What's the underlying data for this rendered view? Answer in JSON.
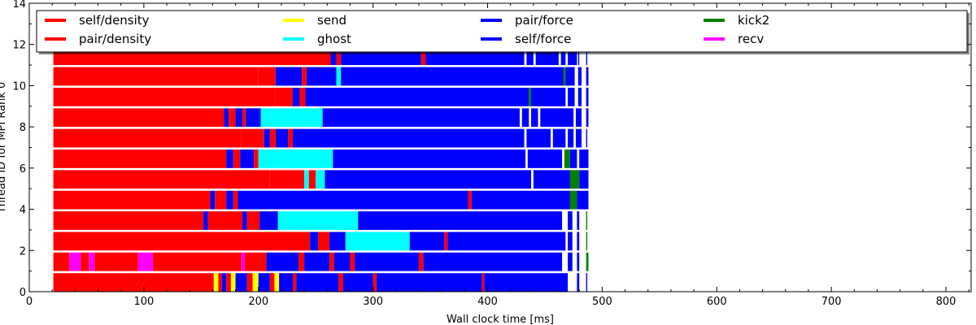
{
  "chart_data": {
    "type": "bar",
    "orientation": "horizontal",
    "xlabel": "Wall clock time [ms]",
    "ylabel": "Thread ID for MPI Rank 0",
    "xlim": [
      0,
      822
    ],
    "ylim": [
      0,
      14
    ],
    "xticks": [
      0,
      100,
      200,
      300,
      400,
      500,
      600,
      700,
      800
    ],
    "yticks": [
      0,
      2,
      4,
      6,
      8,
      10,
      12,
      14
    ],
    "grid": false,
    "legend_position": "top",
    "legend": [
      {
        "name": "self/density",
        "color": "#ff0000"
      },
      {
        "name": "pair/density",
        "color": "#ff0000"
      },
      {
        "name": "send",
        "color": "#ffff00"
      },
      {
        "name": "ghost",
        "color": "#00ffff"
      },
      {
        "name": "pair/force",
        "color": "#0000ff"
      },
      {
        "name": "self/force",
        "color": "#0000ff"
      },
      {
        "name": "kick2",
        "color": "#008000"
      },
      {
        "name": "recv",
        "color": "#ff00ff"
      }
    ],
    "threads": [
      {
        "id": 0,
        "segments": [
          [
            21,
            161,
            "#ff0000"
          ],
          [
            161,
            165,
            "#ffff00"
          ],
          [
            165,
            168,
            "#ff0000"
          ],
          [
            168,
            172,
            "#0000ff"
          ],
          [
            172,
            176,
            "#ff0000"
          ],
          [
            176,
            180,
            "#ffff00"
          ],
          [
            180,
            190,
            "#0000ff"
          ],
          [
            190,
            195,
            "#ff0000"
          ],
          [
            195,
            200,
            "#ffff00"
          ],
          [
            200,
            210,
            "#0000ff"
          ],
          [
            210,
            214,
            "#ff0000"
          ],
          [
            214,
            218,
            "#ffff00"
          ],
          [
            218,
            230,
            "#0000ff"
          ],
          [
            230,
            233,
            "#ff0000"
          ],
          [
            233,
            270,
            "#0000ff"
          ],
          [
            270,
            274,
            "#ff0000"
          ],
          [
            274,
            300,
            "#0000ff"
          ],
          [
            300,
            303,
            "#ff0000"
          ],
          [
            303,
            395,
            "#0000ff"
          ],
          [
            395,
            397,
            "#ff0000"
          ],
          [
            397,
            470,
            "#0000ff"
          ],
          [
            478,
            480,
            "#0000ff"
          ],
          [
            486,
            487,
            "#0000ff"
          ]
        ]
      },
      {
        "id": 1,
        "segments": [
          [
            21,
            35,
            "#ff0000"
          ],
          [
            35,
            45,
            "#ff00ff"
          ],
          [
            45,
            52,
            "#ff0000"
          ],
          [
            52,
            57,
            "#ff00ff"
          ],
          [
            57,
            95,
            "#ff0000"
          ],
          [
            95,
            108,
            "#ff00ff"
          ],
          [
            108,
            185,
            "#ff0000"
          ],
          [
            185,
            188,
            "#ff00ff"
          ],
          [
            188,
            207,
            "#ff0000"
          ],
          [
            207,
            235,
            "#0000ff"
          ],
          [
            235,
            240,
            "#ff0000"
          ],
          [
            240,
            262,
            "#0000ff"
          ],
          [
            262,
            266,
            "#ff0000"
          ],
          [
            266,
            280,
            "#0000ff"
          ],
          [
            280,
            284,
            "#ff0000"
          ],
          [
            284,
            340,
            "#0000ff"
          ],
          [
            340,
            344,
            "#ff0000"
          ],
          [
            344,
            465,
            "#0000ff"
          ],
          [
            470,
            474,
            "#0000ff"
          ],
          [
            478,
            480,
            "#0000ff"
          ],
          [
            486,
            488,
            "#008000"
          ]
        ]
      },
      {
        "id": 2,
        "segments": [
          [
            21,
            245,
            "#ff0000"
          ],
          [
            245,
            252,
            "#0000ff"
          ],
          [
            252,
            262,
            "#ff0000"
          ],
          [
            262,
            276,
            "#0000ff"
          ],
          [
            276,
            332,
            "#00ffff"
          ],
          [
            332,
            362,
            "#0000ff"
          ],
          [
            362,
            365,
            "#ff0000"
          ],
          [
            365,
            468,
            "#0000ff"
          ],
          [
            470,
            474,
            "#0000ff"
          ],
          [
            478,
            480,
            "#0000ff"
          ],
          [
            486,
            487,
            "#008000"
          ]
        ]
      },
      {
        "id": 3,
        "segments": [
          [
            21,
            152,
            "#ff0000"
          ],
          [
            152,
            156,
            "#0000ff"
          ],
          [
            156,
            186,
            "#ff0000"
          ],
          [
            186,
            190,
            "#0000ff"
          ],
          [
            190,
            201,
            "#ff0000"
          ],
          [
            201,
            217,
            "#0000ff"
          ],
          [
            217,
            287,
            "#00ffff"
          ],
          [
            287,
            465,
            "#0000ff"
          ],
          [
            470,
            474,
            "#0000ff"
          ],
          [
            478,
            480,
            "#0000ff"
          ],
          [
            486,
            487,
            "#008000"
          ]
        ]
      },
      {
        "id": 4,
        "segments": [
          [
            21,
            158,
            "#ff0000"
          ],
          [
            158,
            162,
            "#0000ff"
          ],
          [
            162,
            172,
            "#ff0000"
          ],
          [
            172,
            178,
            "#0000ff"
          ],
          [
            178,
            182,
            "#ff0000"
          ],
          [
            182,
            383,
            "#0000ff"
          ],
          [
            383,
            386,
            "#ff0000"
          ],
          [
            386,
            472,
            "#0000ff"
          ],
          [
            472,
            478,
            "#008000"
          ],
          [
            478,
            488,
            "#0000ff"
          ]
        ]
      },
      {
        "id": 5,
        "segments": [
          [
            21,
            210,
            "#ff0000"
          ],
          [
            210,
            240,
            "#ff0000"
          ],
          [
            240,
            244,
            "#00ffff"
          ],
          [
            244,
            250,
            "#ff0000"
          ],
          [
            250,
            258,
            "#00ffff"
          ],
          [
            258,
            438,
            "#0000ff"
          ],
          [
            440,
            472,
            "#0000ff"
          ],
          [
            472,
            480,
            "#008000"
          ],
          [
            480,
            488,
            "#0000ff"
          ]
        ]
      },
      {
        "id": 6,
        "segments": [
          [
            21,
            172,
            "#ff0000"
          ],
          [
            172,
            178,
            "#0000ff"
          ],
          [
            178,
            184,
            "#ff0000"
          ],
          [
            184,
            196,
            "#0000ff"
          ],
          [
            196,
            200,
            "#ff0000"
          ],
          [
            200,
            265,
            "#00ffff"
          ],
          [
            265,
            433,
            "#0000ff"
          ],
          [
            435,
            465,
            "#0000ff"
          ],
          [
            467,
            472,
            "#008000"
          ],
          [
            472,
            478,
            "#0000ff"
          ],
          [
            480,
            488,
            "#0000ff"
          ]
        ]
      },
      {
        "id": 7,
        "segments": [
          [
            21,
            185,
            "#ff0000"
          ],
          [
            185,
            205,
            "#ff0000"
          ],
          [
            205,
            210,
            "#0000ff"
          ],
          [
            210,
            215,
            "#ff0000"
          ],
          [
            215,
            226,
            "#0000ff"
          ],
          [
            226,
            230,
            "#ff0000"
          ],
          [
            230,
            432,
            "#0000ff"
          ],
          [
            434,
            455,
            "#0000ff"
          ],
          [
            457,
            468,
            "#0000ff"
          ],
          [
            470,
            475,
            "#0000ff"
          ],
          [
            477,
            482,
            "#0000ff"
          ],
          [
            486,
            487,
            "#0000ff"
          ]
        ]
      },
      {
        "id": 8,
        "segments": [
          [
            21,
            170,
            "#ff0000"
          ],
          [
            170,
            174,
            "#0000ff"
          ],
          [
            174,
            180,
            "#ff0000"
          ],
          [
            180,
            186,
            "#0000ff"
          ],
          [
            186,
            189,
            "#ff0000"
          ],
          [
            189,
            202,
            "#0000ff"
          ],
          [
            202,
            256,
            "#00ffff"
          ],
          [
            256,
            428,
            "#0000ff"
          ],
          [
            430,
            436,
            "#0000ff"
          ],
          [
            438,
            444,
            "#0000ff"
          ],
          [
            446,
            475,
            "#0000ff"
          ],
          [
            477,
            482,
            "#0000ff"
          ],
          [
            486,
            488,
            "#0000ff"
          ]
        ]
      },
      {
        "id": 9,
        "segments": [
          [
            21,
            215,
            "#ff0000"
          ],
          [
            215,
            230,
            "#ff0000"
          ],
          [
            230,
            236,
            "#0000ff"
          ],
          [
            236,
            241,
            "#ff0000"
          ],
          [
            241,
            436,
            "#0000ff"
          ],
          [
            436,
            438,
            "#008000"
          ],
          [
            438,
            468,
            "#0000ff"
          ],
          [
            470,
            476,
            "#0000ff"
          ],
          [
            479,
            482,
            "#0000ff"
          ],
          [
            486,
            488,
            "#0000ff"
          ]
        ]
      },
      {
        "id": 10,
        "segments": [
          [
            21,
            200,
            "#ff0000"
          ],
          [
            200,
            215,
            "#ff0000"
          ],
          [
            215,
            238,
            "#0000ff"
          ],
          [
            238,
            242,
            "#ff0000"
          ],
          [
            242,
            268,
            "#0000ff"
          ],
          [
            268,
            272,
            "#00ffff"
          ],
          [
            272,
            466,
            "#0000ff"
          ],
          [
            466,
            468,
            "#008000"
          ],
          [
            468,
            476,
            "#0000ff"
          ],
          [
            479,
            482,
            "#0000ff"
          ],
          [
            486,
            488,
            "#0000ff"
          ]
        ]
      },
      {
        "id": 11,
        "segments": [
          [
            21,
            192,
            "#ff0000"
          ],
          [
            192,
            263,
            "#ff0000"
          ],
          [
            263,
            268,
            "#0000ff"
          ],
          [
            268,
            272,
            "#ff0000"
          ],
          [
            272,
            342,
            "#0000ff"
          ],
          [
            342,
            346,
            "#ff0000"
          ],
          [
            346,
            432,
            "#0000ff"
          ],
          [
            434,
            440,
            "#0000ff"
          ],
          [
            442,
            462,
            "#0000ff"
          ],
          [
            464,
            468,
            "#0000ff"
          ],
          [
            470,
            478,
            "#0000ff"
          ],
          [
            479,
            480,
            "#0000ff"
          ],
          [
            486,
            487,
            "#0000ff"
          ]
        ]
      }
    ]
  }
}
